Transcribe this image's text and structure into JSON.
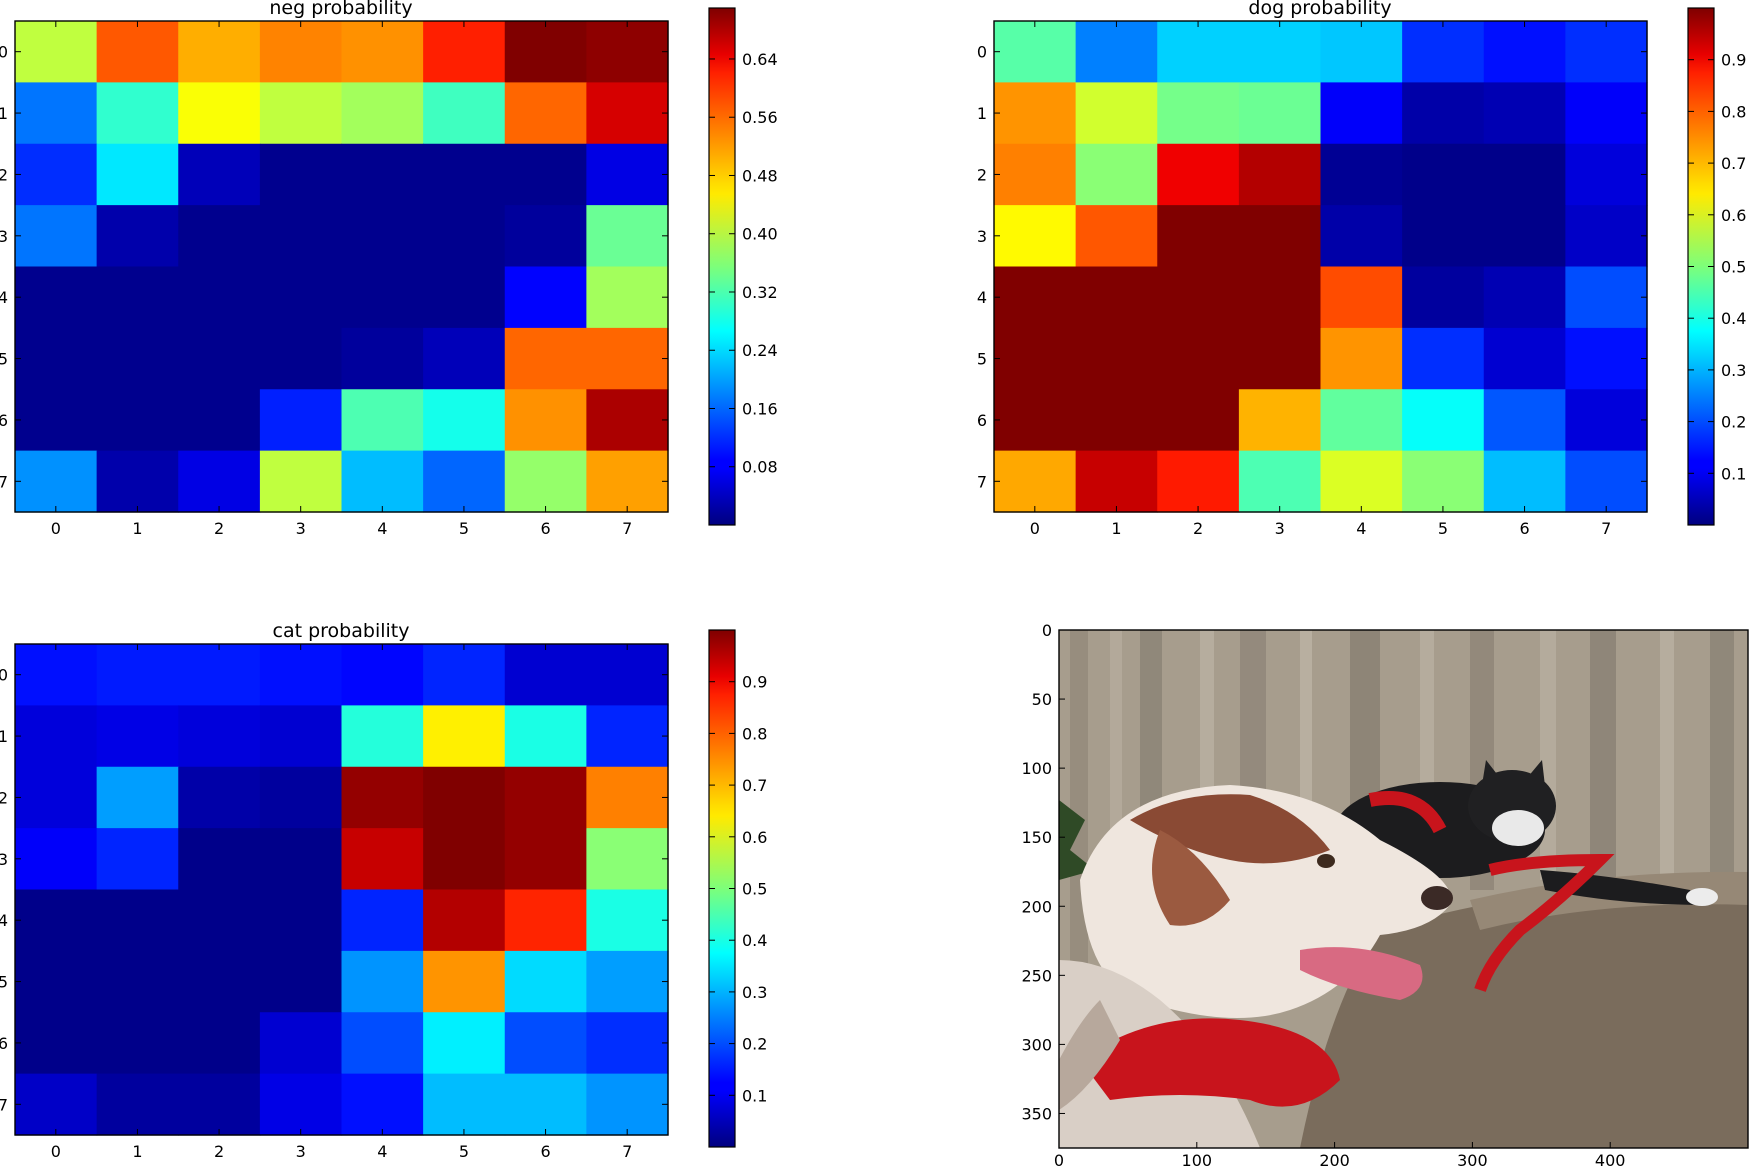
{
  "colormap": "jet",
  "chart_data": [
    {
      "type": "heatmap",
      "title": "neg probability",
      "x": [
        0,
        1,
        2,
        3,
        4,
        5,
        6,
        7
      ],
      "y": [
        0,
        1,
        2,
        3,
        4,
        5,
        6,
        7
      ],
      "x_ticks": [
        "0",
        "1",
        "2",
        "3",
        "4",
        "5",
        "6",
        "7"
      ],
      "y_ticks": [
        "0",
        "1",
        "2",
        "3",
        "4",
        "5",
        "6",
        "7"
      ],
      "values": [
        [
          0.4,
          0.56,
          0.5,
          0.53,
          0.52,
          0.6,
          0.71,
          0.7
        ],
        [
          0.17,
          0.3,
          0.44,
          0.4,
          0.38,
          0.31,
          0.55,
          0.65
        ],
        [
          0.12,
          0.25,
          0.04,
          0.01,
          0.01,
          0.01,
          0.01,
          0.07
        ],
        [
          0.17,
          0.03,
          0.01,
          0.01,
          0.01,
          0.01,
          0.02,
          0.34
        ],
        [
          0.01,
          0.01,
          0.01,
          0.01,
          0.01,
          0.01,
          0.09,
          0.38
        ],
        [
          0.01,
          0.01,
          0.01,
          0.01,
          0.02,
          0.04,
          0.55,
          0.55
        ],
        [
          0.01,
          0.01,
          0.01,
          0.11,
          0.32,
          0.28,
          0.52,
          0.68
        ],
        [
          0.19,
          0.03,
          0.07,
          0.4,
          0.22,
          0.16,
          0.37,
          0.51
        ]
      ],
      "colorbar": {
        "min": 0.0,
        "max": 0.71,
        "ticks": [
          0.08,
          0.16,
          0.24,
          0.32,
          0.4,
          0.48,
          0.56,
          0.64
        ],
        "tick_labels": [
          "0.08",
          "0.16",
          "0.24",
          "0.32",
          "0.40",
          "0.48",
          "0.56",
          "0.64"
        ]
      }
    },
    {
      "type": "heatmap",
      "title": "dog probability",
      "x": [
        0,
        1,
        2,
        3,
        4,
        5,
        6,
        7
      ],
      "y": [
        0,
        1,
        2,
        3,
        4,
        5,
        6,
        7
      ],
      "x_ticks": [
        "0",
        "1",
        "2",
        "3",
        "4",
        "5",
        "6",
        "7"
      ],
      "y_ticks": [
        "0",
        "1",
        "2",
        "3",
        "4",
        "5",
        "6",
        "7"
      ],
      "values": [
        [
          0.46,
          0.25,
          0.33,
          0.33,
          0.32,
          0.17,
          0.14,
          0.17
        ],
        [
          0.73,
          0.58,
          0.49,
          0.48,
          0.12,
          0.04,
          0.05,
          0.12
        ],
        [
          0.75,
          0.51,
          0.89,
          0.95,
          0.02,
          0.01,
          0.01,
          0.09
        ],
        [
          0.63,
          0.79,
          1.0,
          1.0,
          0.04,
          0.01,
          0.01,
          0.07
        ],
        [
          1.0,
          1.0,
          1.0,
          1.0,
          0.8,
          0.03,
          0.05,
          0.2
        ],
        [
          1.0,
          1.0,
          1.0,
          1.0,
          0.73,
          0.17,
          0.08,
          0.14
        ],
        [
          1.0,
          1.0,
          1.0,
          0.7,
          0.47,
          0.38,
          0.21,
          0.09
        ],
        [
          0.71,
          0.93,
          0.85,
          0.45,
          0.59,
          0.51,
          0.31,
          0.2
        ]
      ],
      "colorbar": {
        "min": 0.0,
        "max": 1.0,
        "ticks": [
          0.1,
          0.2,
          0.3,
          0.4,
          0.5,
          0.6,
          0.7,
          0.8,
          0.9
        ],
        "tick_labels": [
          "0.1",
          "0.2",
          "0.3",
          "0.4",
          "0.5",
          "0.6",
          "0.7",
          "0.8",
          "0.9"
        ]
      }
    },
    {
      "type": "heatmap",
      "title": "cat probability",
      "x": [
        0,
        1,
        2,
        3,
        4,
        5,
        6,
        7
      ],
      "y": [
        0,
        1,
        2,
        3,
        4,
        5,
        6,
        7
      ],
      "x_ticks": [
        "0",
        "1",
        "2",
        "3",
        "4",
        "5",
        "6",
        "7"
      ],
      "y_ticks": [
        "0",
        "1",
        "2",
        "3",
        "4",
        "5",
        "6",
        "7"
      ],
      "values": [
        [
          0.14,
          0.15,
          0.15,
          0.14,
          0.13,
          0.16,
          0.08,
          0.08
        ],
        [
          0.09,
          0.1,
          0.09,
          0.08,
          0.41,
          0.64,
          0.4,
          0.16
        ],
        [
          0.09,
          0.28,
          0.04,
          0.03,
          0.98,
          1.0,
          0.98,
          0.75
        ],
        [
          0.12,
          0.16,
          0.01,
          0.01,
          0.93,
          1.0,
          0.98,
          0.51
        ],
        [
          0.01,
          0.01,
          0.01,
          0.01,
          0.16,
          0.95,
          0.84,
          0.4
        ],
        [
          0.01,
          0.01,
          0.01,
          0.01,
          0.27,
          0.73,
          0.34,
          0.28
        ],
        [
          0.01,
          0.01,
          0.01,
          0.08,
          0.2,
          0.36,
          0.2,
          0.17
        ],
        [
          0.07,
          0.03,
          0.03,
          0.1,
          0.14,
          0.31,
          0.31,
          0.27
        ]
      ],
      "colorbar": {
        "min": 0.0,
        "max": 1.0,
        "ticks": [
          0.1,
          0.2,
          0.3,
          0.4,
          0.5,
          0.6,
          0.7,
          0.8,
          0.9
        ],
        "tick_labels": [
          "0.1",
          "0.2",
          "0.3",
          "0.4",
          "0.5",
          "0.6",
          "0.7",
          "0.8",
          "0.9"
        ]
      }
    },
    {
      "type": "image",
      "title": "",
      "subject": "dog and cat on couch",
      "x_ticks": [
        0,
        100,
        200,
        300,
        400
      ],
      "y_ticks": [
        0,
        50,
        100,
        150,
        200,
        250,
        300,
        350
      ],
      "x_tick_labels": [
        "0",
        "100",
        "200",
        "300",
        "400"
      ],
      "y_tick_labels": [
        "0",
        "50",
        "100",
        "150",
        "200",
        "250",
        "300",
        "350"
      ],
      "xlim": [
        0,
        500
      ],
      "ylim": [
        375,
        0
      ]
    }
  ]
}
